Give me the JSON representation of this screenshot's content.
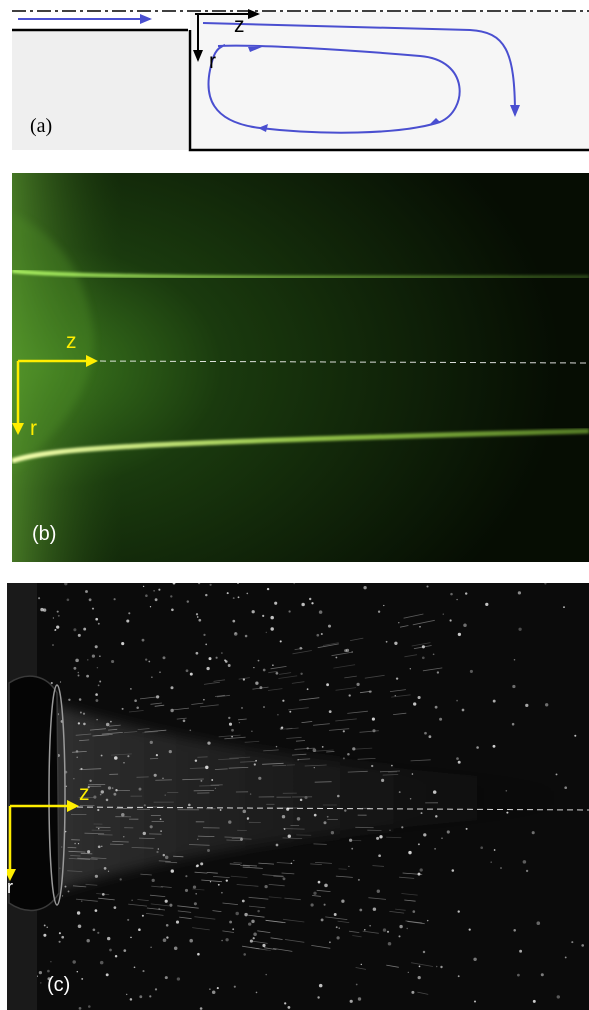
{
  "panel_a": {
    "label": "(a)",
    "axis_z": "z",
    "axis_r": "r",
    "colors": {
      "flow": "#4a4fd0",
      "wall": "#000000",
      "inlet_fill": "#efefef",
      "chamber_fill": "#f7f7f7"
    }
  },
  "panel_b": {
    "label": "(b)",
    "axis_z": "z",
    "axis_r": "r",
    "colors": {
      "background": "#0b1a06",
      "shear_layer": "#9ee24a",
      "axis_arrow": "#ffee00"
    }
  },
  "panel_c": {
    "label": "(c)",
    "axis_z": "z",
    "axis_r": "r",
    "colors": {
      "background": "#0a0a0a",
      "particles": "#e6e6e6",
      "axis_arrow": "#ffee00"
    }
  }
}
